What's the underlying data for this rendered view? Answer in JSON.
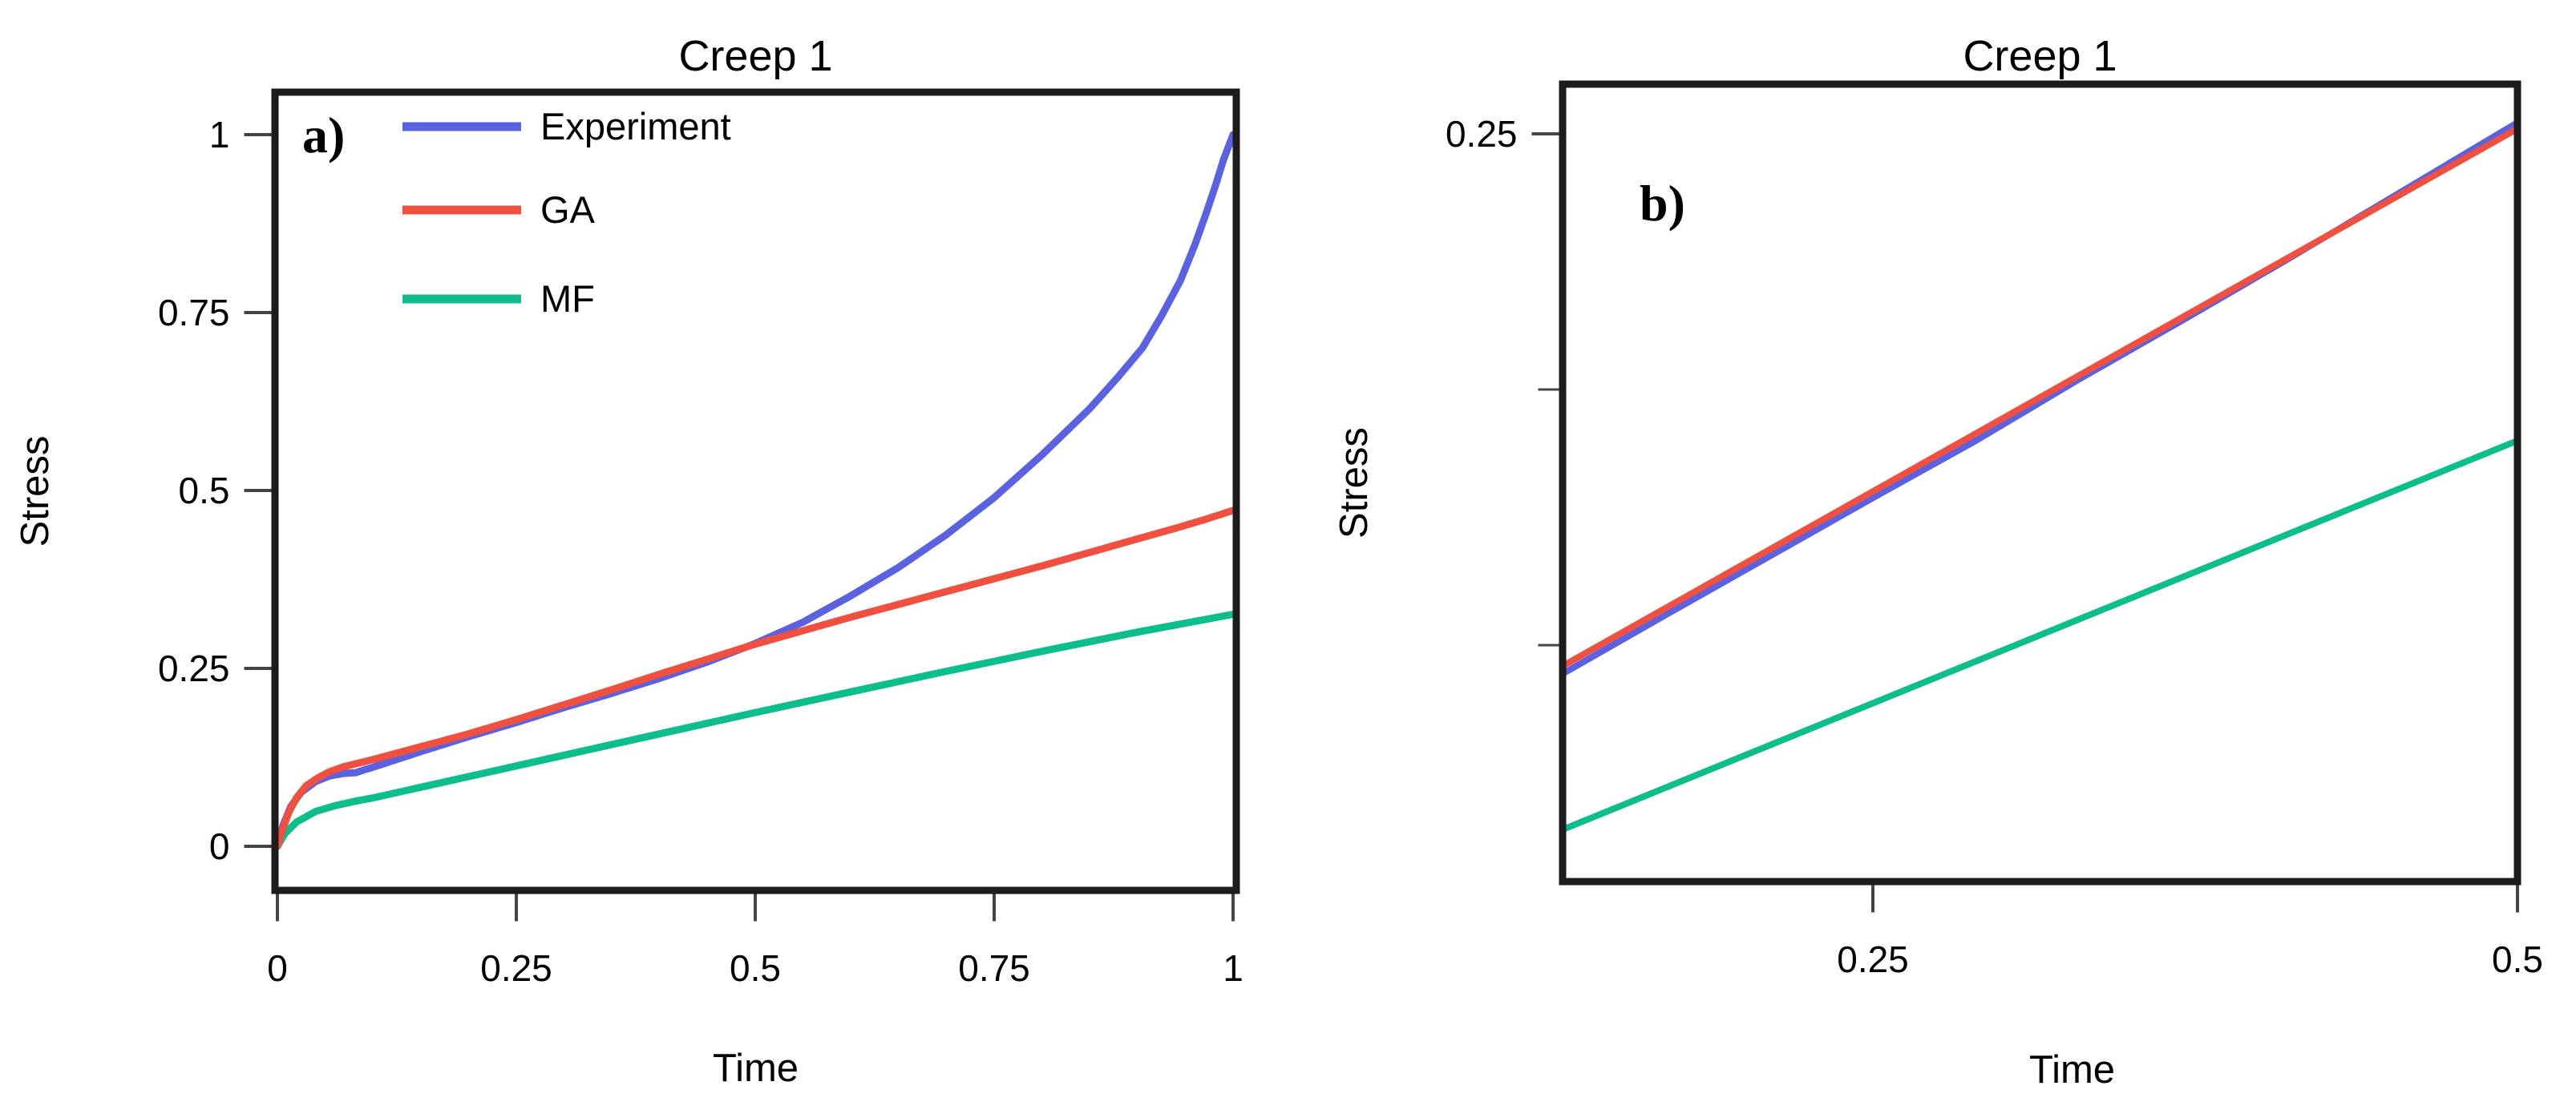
{
  "figure": {
    "background": "#ffffff",
    "border_color": "#1c1c1c",
    "tick_color": "#454545",
    "text_color": "#000000"
  },
  "chart_data": [
    {
      "type": "line",
      "panel_label": "a)",
      "title": "Creep 1",
      "xlabel": "Time",
      "ylabel": "Stress",
      "xlim": [
        -0.003,
        1.004
      ],
      "ylim": [
        -0.062,
        1.06
      ],
      "grid": false,
      "xticks": [
        {
          "v": 0,
          "label": "0"
        },
        {
          "v": 0.25,
          "label": "0.25"
        },
        {
          "v": 0.5,
          "label": "0.5"
        },
        {
          "v": 0.75,
          "label": "0.75"
        },
        {
          "v": 1,
          "label": "1"
        }
      ],
      "yticks": [
        {
          "v": 0,
          "label": "0"
        },
        {
          "v": 0.25,
          "label": "0.25"
        },
        {
          "v": 0.5,
          "label": "0.5"
        },
        {
          "v": 0.75,
          "label": "0.75"
        },
        {
          "v": 1,
          "label": "1"
        }
      ],
      "legend": {
        "position": "top-left-inside",
        "entries": [
          "Experiment",
          "GA",
          "MF"
        ]
      },
      "series": [
        {
          "name": "Experiment",
          "color": "#5a62e2",
          "x": [
            0,
            0.006,
            0.014,
            0.025,
            0.04,
            0.055,
            0.07,
            0.082,
            0.092,
            0.1,
            0.15,
            0.2,
            0.25,
            0.3,
            0.35,
            0.4,
            0.45,
            0.5,
            0.55,
            0.6,
            0.65,
            0.7,
            0.75,
            0.8,
            0.85,
            0.88,
            0.905,
            0.925,
            0.945,
            0.96,
            0.972,
            0.982,
            0.99,
            1.0
          ],
          "y": [
            0,
            0.03,
            0.056,
            0.076,
            0.091,
            0.099,
            0.1025,
            0.1035,
            0.108,
            0.111,
            0.133,
            0.154,
            0.174,
            0.195,
            0.215,
            0.236,
            0.259,
            0.285,
            0.315,
            0.352,
            0.392,
            0.438,
            0.49,
            0.55,
            0.615,
            0.66,
            0.7,
            0.745,
            0.795,
            0.845,
            0.89,
            0.93,
            0.965,
            1.0
          ]
        },
        {
          "name": "GA",
          "color": "#f0503f",
          "x": [
            0,
            0.005,
            0.012,
            0.02,
            0.03,
            0.042,
            0.055,
            0.07,
            0.085,
            0.1,
            0.15,
            0.2,
            0.25,
            0.3,
            0.35,
            0.4,
            0.45,
            0.5,
            0.55,
            0.6,
            0.65,
            0.7,
            0.75,
            0.8,
            0.85,
            0.9,
            0.94,
            0.97,
            1.0
          ],
          "y": [
            0,
            0.022,
            0.048,
            0.068,
            0.085,
            0.096,
            0.105,
            0.112,
            0.117,
            0.122,
            0.14,
            0.158,
            0.178,
            0.199,
            0.22,
            0.242,
            0.263,
            0.284,
            0.303,
            0.322,
            0.34,
            0.358,
            0.376,
            0.394,
            0.413,
            0.432,
            0.447,
            0.459,
            0.472
          ]
        },
        {
          "name": "MF",
          "color": "#0bbe8c",
          "x": [
            0,
            0.008,
            0.02,
            0.04,
            0.06,
            0.08,
            0.1,
            0.15,
            0.2,
            0.25,
            0.3,
            0.4,
            0.5,
            0.6,
            0.7,
            0.8,
            0.9,
            1.0
          ],
          "y": [
            0,
            0.018,
            0.034,
            0.049,
            0.057,
            0.063,
            0.068,
            0.083,
            0.098,
            0.113,
            0.128,
            0.158,
            0.188,
            0.217,
            0.246,
            0.274,
            0.301,
            0.326
          ]
        }
      ]
    },
    {
      "type": "line",
      "panel_label": "b)",
      "title": "Creep 1",
      "xlabel": "Time",
      "ylabel": "Stress",
      "xlim": [
        0.13,
        0.5
      ],
      "ylim": [
        0.104,
        0.26
      ],
      "grid": false,
      "xticks": [
        {
          "v": 0.25,
          "label": "0.25"
        },
        {
          "v": 0.5,
          "label": "0.5"
        }
      ],
      "yticks": [
        {
          "v": 0.25,
          "label": "0.25"
        }
      ],
      "minor_yticks": [
        0.2,
        0.15
      ],
      "series": [
        {
          "name": "Experiment",
          "color": "#5a62e2",
          "x": [
            0.13,
            0.17,
            0.21,
            0.25,
            0.29,
            0.33,
            0.37,
            0.41,
            0.45,
            0.48,
            0.5
          ],
          "y": [
            0.1445,
            0.156,
            0.1674,
            0.1788,
            0.19,
            0.202,
            0.2135,
            0.2252,
            0.2372,
            0.2462,
            0.2522
          ]
        },
        {
          "name": "GA",
          "color": "#f0503f",
          "x": [
            0.13,
            0.5
          ],
          "y": [
            0.146,
            0.251
          ]
        },
        {
          "name": "MF",
          "color": "#0bbe8c",
          "x": [
            0.13,
            0.5
          ],
          "y": [
            0.114,
            0.19
          ]
        }
      ]
    }
  ]
}
